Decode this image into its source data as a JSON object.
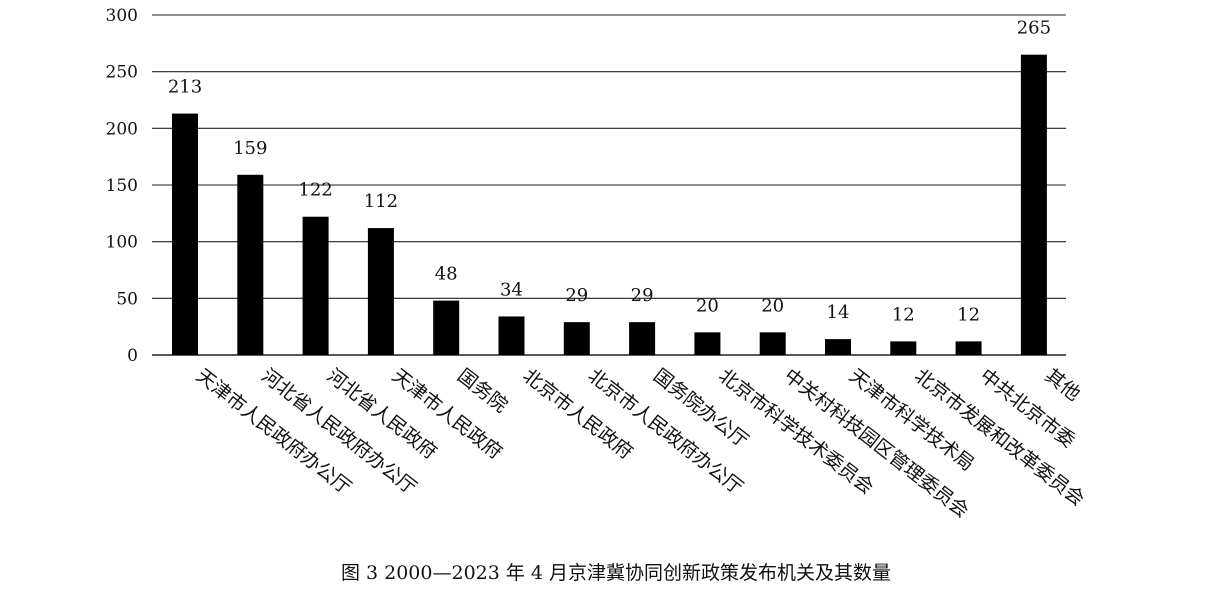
{
  "caption": "图 3 2000—2023 年 4 月京津冀协同创新政策发布机关及其数量",
  "chart_data": {
    "type": "bar",
    "title": "",
    "xlabel": "",
    "ylabel": "",
    "ylim": [
      0,
      300
    ],
    "yticks": [
      0,
      50,
      100,
      150,
      200,
      250,
      300
    ],
    "grid": true,
    "bar_color": "#000000",
    "categories": [
      "天津市人民政府办公厅",
      "河北省人民政府办公厅",
      "河北省人民政府",
      "天津市人民政府",
      "国务院",
      "北京市人民政府",
      "北京市人民政府办公厅",
      "国务院办公厅",
      "北京市科学技术委员会",
      "中关村科技园区管理委员会",
      "天津市科学技术局",
      "北京市发展和改革委员会",
      "中共北京市委",
      "其他"
    ],
    "values": [
      213,
      159,
      122,
      112,
      48,
      34,
      29,
      29,
      20,
      20,
      14,
      12,
      12,
      265
    ]
  }
}
